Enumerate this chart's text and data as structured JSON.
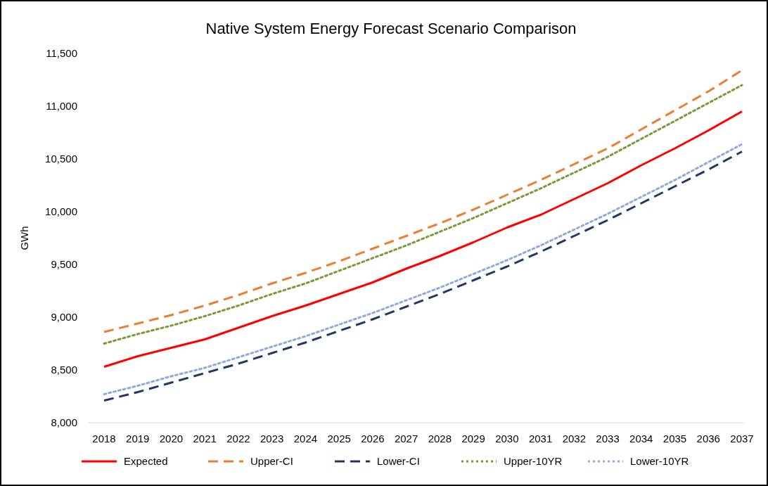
{
  "chart_data": {
    "type": "line",
    "title": "Native System Energy Forecast Scenario Comparison",
    "ylabel": "GWh",
    "categories": [
      "2018",
      "2019",
      "2020",
      "2021",
      "2022",
      "2023",
      "2024",
      "2025",
      "2026",
      "2027",
      "2028",
      "2029",
      "2030",
      "2031",
      "2032",
      "2033",
      "2034",
      "2035",
      "2036",
      "2037"
    ],
    "series": [
      {
        "name": "Expected",
        "color": "#ff0000",
        "line_style": "solid",
        "values": [
          8530,
          8630,
          8710,
          8790,
          8900,
          9010,
          9110,
          9220,
          9330,
          9460,
          9580,
          9710,
          9850,
          9970,
          10120,
          10270,
          10440,
          10600,
          10770,
          10950
        ]
      },
      {
        "name": "Upper-CI",
        "color": "#ed7d31",
        "line_style": "dashed",
        "values": [
          8860,
          8940,
          9020,
          9110,
          9210,
          9320,
          9420,
          9530,
          9650,
          9770,
          9890,
          10020,
          10160,
          10300,
          10450,
          10600,
          10780,
          10960,
          11140,
          11340
        ]
      },
      {
        "name": "Lower-CI",
        "color": "#203864",
        "line_style": "dashed",
        "values": [
          8210,
          8290,
          8380,
          8470,
          8560,
          8660,
          8760,
          8870,
          8980,
          9100,
          9220,
          9350,
          9480,
          9620,
          9770,
          9920,
          10080,
          10240,
          10400,
          10570
        ]
      },
      {
        "name": "Upper-10YR",
        "color": "#7a9a3a",
        "line_style": "dotted",
        "values": [
          8750,
          8840,
          8920,
          9010,
          9110,
          9220,
          9320,
          9440,
          9560,
          9680,
          9810,
          9940,
          10080,
          10220,
          10370,
          10520,
          10690,
          10860,
          11030,
          11200
        ]
      },
      {
        "name": "Lower-10YR",
        "color": "#8faadc",
        "line_style": "dotted",
        "values": [
          8270,
          8350,
          8440,
          8520,
          8620,
          8720,
          8820,
          8930,
          9040,
          9160,
          9280,
          9410,
          9540,
          9680,
          9830,
          9980,
          10140,
          10300,
          10470,
          10640
        ]
      }
    ],
    "ylim": [
      8000,
      11500
    ],
    "yticks": [
      {
        "value": 8000,
        "label": "8,000"
      },
      {
        "value": 8500,
        "label": "8,500"
      },
      {
        "value": 9000,
        "label": "9,000"
      },
      {
        "value": 9500,
        "label": "9,500"
      },
      {
        "value": 10000,
        "label": "10,000"
      },
      {
        "value": 10500,
        "label": "10,500"
      },
      {
        "value": 11000,
        "label": "11,000"
      },
      {
        "value": 11500,
        "label": "11,500"
      }
    ],
    "grid": false,
    "legend": "bottom",
    "marker": "none"
  }
}
